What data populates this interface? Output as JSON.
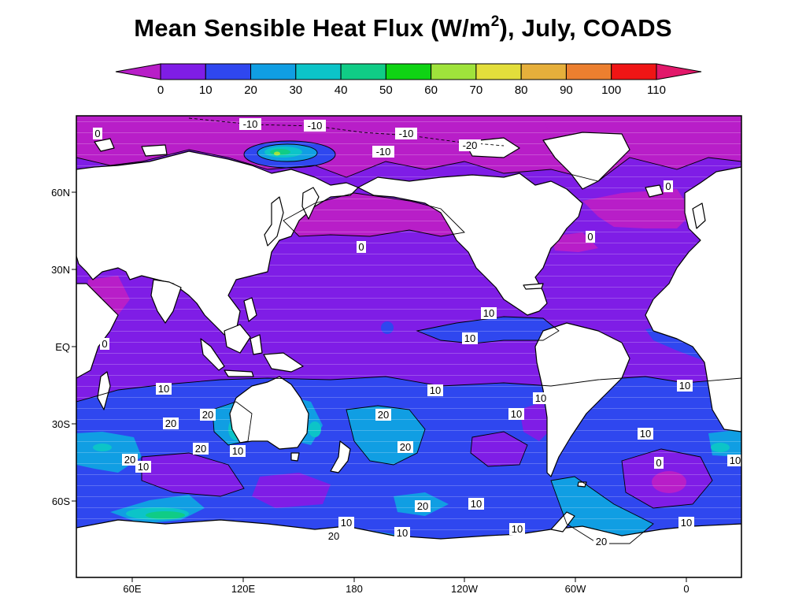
{
  "title": {
    "main": "Mean Sensible Heat Flux (W/m",
    "superscript": "2",
    "suffix": "), July, COADS"
  },
  "colorbar": {
    "tick_labels": [
      "0",
      "10",
      "20",
      "30",
      "40",
      "50",
      "60",
      "70",
      "80",
      "90",
      "100",
      "110"
    ],
    "under_color": "#b81ec8",
    "over_color": "#e2186a",
    "bins": [
      {
        "range": "0-10",
        "color": "#7f1de6"
      },
      {
        "range": "10-20",
        "color": "#2f47ef"
      },
      {
        "range": "20-30",
        "color": "#109ee3"
      },
      {
        "range": "30-40",
        "color": "#0cc4c8"
      },
      {
        "range": "40-50",
        "color": "#10cc86"
      },
      {
        "range": "50-60",
        "color": "#0fd314"
      },
      {
        "range": "60-70",
        "color": "#9fe33b"
      },
      {
        "range": "70-80",
        "color": "#e3de3b"
      },
      {
        "range": "80-90",
        "color": "#e6af3b"
      },
      {
        "range": "90-100",
        "color": "#ec7f2f"
      },
      {
        "range": "100-110",
        "color": "#f01515"
      }
    ]
  },
  "axes": {
    "lat_labels": [
      "60N",
      "30N",
      "EQ",
      "30S",
      "60S"
    ],
    "lon_labels": [
      "60E",
      "120E",
      "180",
      "120W",
      "60W",
      "0"
    ]
  },
  "contour_labels": [
    {
      "id": "arctic-1",
      "text": "-10"
    },
    {
      "id": "arctic-2",
      "text": "-10"
    },
    {
      "id": "arctic-3",
      "text": "-10"
    },
    {
      "id": "arctic-4",
      "text": "-10"
    },
    {
      "id": "arctic-5",
      "text": "-20"
    },
    {
      "id": "arctic-6",
      "text": "0"
    },
    {
      "id": "arctic-7",
      "text": "0"
    },
    {
      "id": "npac-1",
      "text": "0"
    },
    {
      "id": "natl-1",
      "text": "0"
    },
    {
      "id": "indian-1",
      "text": "0"
    },
    {
      "id": "epac-1",
      "text": "10"
    },
    {
      "id": "epac-2",
      "text": "10"
    },
    {
      "id": "s-ind-1",
      "text": "10"
    },
    {
      "id": "s-pac-1",
      "text": "10"
    },
    {
      "id": "s-pac-2",
      "text": "10"
    },
    {
      "id": "s-pac-3",
      "text": "10"
    },
    {
      "id": "s-atl-1",
      "text": "10"
    },
    {
      "id": "s-atl-2",
      "text": "10"
    },
    {
      "id": "s-atl-3",
      "text": "0"
    },
    {
      "id": "s-atl-4",
      "text": "10"
    },
    {
      "id": "aus-1",
      "text": "20"
    },
    {
      "id": "aus-2",
      "text": "20"
    },
    {
      "id": "aus-3",
      "text": "20"
    },
    {
      "id": "aus-4",
      "text": "10"
    },
    {
      "id": "sw-ind-1",
      "text": "20"
    },
    {
      "id": "sw-ind-2",
      "text": "10"
    },
    {
      "id": "s-pac-4",
      "text": "20"
    },
    {
      "id": "s-pac-5",
      "text": "20"
    },
    {
      "id": "so-1",
      "text": "20"
    },
    {
      "id": "so-2",
      "text": "10"
    },
    {
      "id": "so-3",
      "text": "10"
    },
    {
      "id": "so-4",
      "text": "10"
    },
    {
      "id": "so-5",
      "text": "20"
    },
    {
      "id": "so-6",
      "text": "10"
    },
    {
      "id": "so-7",
      "text": "10"
    },
    {
      "id": "so-8",
      "text": "20"
    }
  ]
}
